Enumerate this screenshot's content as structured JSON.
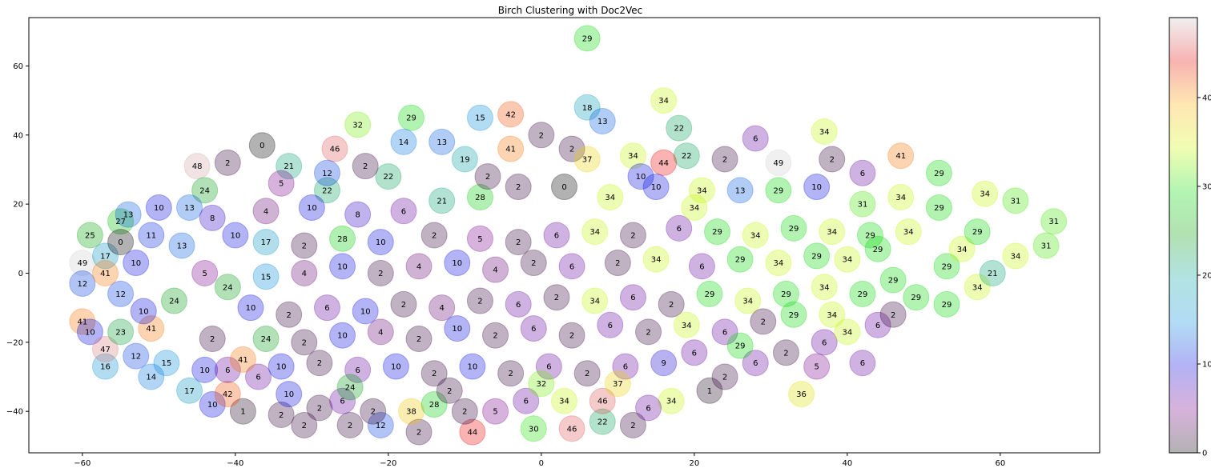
{
  "chart_data": {
    "type": "scatter",
    "title": "Birch Clustering with Doc2Vec",
    "xlabel": "",
    "ylabel": "",
    "xlim": [
      -67,
      73
    ],
    "ylim": [
      -52,
      74
    ],
    "x_ticks": [
      -60,
      -40,
      -20,
      0,
      20,
      40,
      60
    ],
    "y_ticks": [
      -40,
      -20,
      0,
      20,
      40,
      60
    ],
    "grid": false,
    "colormap": "nipy_spectral",
    "colorbar": {
      "range": [
        0,
        49
      ],
      "ticks": [
        0,
        10,
        20,
        30,
        40
      ]
    },
    "marker_alpha": 0.3,
    "points": [
      {
        "x": 6,
        "y": 68,
        "label": "29"
      },
      {
        "x": 16,
        "y": 50,
        "label": "34"
      },
      {
        "x": -36.5,
        "y": 37,
        "label": "0"
      },
      {
        "x": -60,
        "y": 3,
        "label": "49"
      },
      {
        "x": -60,
        "y": -3,
        "label": "12"
      },
      {
        "x": -60,
        "y": -14,
        "label": "41"
      },
      {
        "x": -59,
        "y": -17,
        "label": "10"
      },
      {
        "x": -59,
        "y": 11,
        "label": "25"
      },
      {
        "x": -57,
        "y": 5,
        "label": "17"
      },
      {
        "x": -57,
        "y": -27,
        "label": "16"
      },
      {
        "x": -57,
        "y": -22,
        "label": "47"
      },
      {
        "x": -55,
        "y": 15,
        "label": "27"
      },
      {
        "x": -55,
        "y": 9,
        "label": "0"
      },
      {
        "x": -54,
        "y": 17,
        "label": "13"
      },
      {
        "x": -51,
        "y": 11,
        "label": "11"
      },
      {
        "x": -51,
        "y": -16,
        "label": "41"
      },
      {
        "x": -51,
        "y": -30,
        "label": "14"
      },
      {
        "x": -43,
        "y": -38,
        "label": "10"
      },
      {
        "x": -39,
        "y": -40,
        "label": "1"
      },
      {
        "x": -41,
        "y": -35,
        "label": "42"
      },
      {
        "x": -46,
        "y": -34,
        "label": "17"
      },
      {
        "x": -34,
        "y": -41,
        "label": "2"
      },
      {
        "x": -31,
        "y": -44,
        "label": "2"
      },
      {
        "x": -25,
        "y": -44,
        "label": "2"
      },
      {
        "x": -21,
        "y": -44,
        "label": "12"
      },
      {
        "x": -16,
        "y": -46,
        "label": "2"
      },
      {
        "x": -9,
        "y": -46,
        "label": "44"
      },
      {
        "x": -1,
        "y": -45,
        "label": "30"
      },
      {
        "x": 4,
        "y": -45,
        "label": "46"
      },
      {
        "x": 8,
        "y": -43,
        "label": "22"
      },
      {
        "x": 12,
        "y": -44,
        "label": "2"
      },
      {
        "x": 17,
        "y": -37,
        "label": "34"
      },
      {
        "x": 22,
        "y": -34,
        "label": "1"
      },
      {
        "x": 34,
        "y": -35,
        "label": "36"
      },
      {
        "x": 36,
        "y": -27,
        "label": "5"
      },
      {
        "x": 42,
        "y": -26,
        "label": "6"
      },
      {
        "x": 44,
        "y": -15,
        "label": "6"
      },
      {
        "x": 53,
        "y": -9,
        "label": "29"
      },
      {
        "x": 57,
        "y": -4,
        "label": "34"
      },
      {
        "x": 59,
        "y": 0,
        "label": "21"
      },
      {
        "x": 62,
        "y": 5,
        "label": "34"
      },
      {
        "x": 66,
        "y": 8,
        "label": "31"
      },
      {
        "x": 67,
        "y": 15,
        "label": "31"
      },
      {
        "x": 62,
        "y": 21,
        "label": "31"
      },
      {
        "x": 58,
        "y": 23,
        "label": "34"
      },
      {
        "x": 52,
        "y": 29,
        "label": "29"
      },
      {
        "x": 47,
        "y": 34,
        "label": "41"
      },
      {
        "x": 37,
        "y": 41,
        "label": "34"
      },
      {
        "x": 28,
        "y": 39,
        "label": "6"
      },
      {
        "x": 18,
        "y": 42,
        "label": "22"
      },
      {
        "x": 19,
        "y": 34,
        "label": "22"
      },
      {
        "x": 6,
        "y": 48,
        "label": "18"
      },
      {
        "x": 8,
        "y": 44,
        "label": "13"
      },
      {
        "x": -4,
        "y": 46,
        "label": "42"
      },
      {
        "x": -8,
        "y": 45,
        "label": "15"
      },
      {
        "x": -17,
        "y": 45,
        "label": "29"
      },
      {
        "x": -27,
        "y": 36,
        "label": "46"
      },
      {
        "x": -24,
        "y": 43,
        "label": "32"
      },
      {
        "x": -13,
        "y": 38,
        "label": "13"
      },
      {
        "x": -10,
        "y": 33,
        "label": "19"
      },
      {
        "x": -4,
        "y": 36,
        "label": "41"
      },
      {
        "x": 0,
        "y": 40,
        "label": "2"
      },
      {
        "x": 4,
        "y": 36,
        "label": "2"
      },
      {
        "x": 6,
        "y": 33,
        "label": "37"
      },
      {
        "x": 12,
        "y": 34,
        "label": "34"
      },
      {
        "x": 16,
        "y": 32,
        "label": "44"
      },
      {
        "x": 24,
        "y": 33,
        "label": "2"
      },
      {
        "x": 31,
        "y": 32,
        "label": "49"
      },
      {
        "x": 38,
        "y": 33,
        "label": "2"
      },
      {
        "x": 42,
        "y": 29,
        "label": "6"
      },
      {
        "x": -45,
        "y": 31,
        "label": "48"
      },
      {
        "x": -44,
        "y": 24,
        "label": "24"
      },
      {
        "x": -41,
        "y": 32,
        "label": "2"
      },
      {
        "x": -33,
        "y": 31,
        "label": "21"
      },
      {
        "x": -34,
        "y": 26,
        "label": "5"
      },
      {
        "x": -28,
        "y": 24,
        "label": "22"
      },
      {
        "x": -20,
        "y": 28,
        "label": "22"
      },
      {
        "x": -18,
        "y": 38,
        "label": "14"
      },
      {
        "x": -50,
        "y": 19,
        "label": "10"
      },
      {
        "x": -46,
        "y": 19,
        "label": "13"
      },
      {
        "x": -43,
        "y": 16,
        "label": "8"
      },
      {
        "x": -47,
        "y": 8,
        "label": "13"
      },
      {
        "x": -44,
        "y": 0,
        "label": "5"
      },
      {
        "x": -48,
        "y": -8,
        "label": "24"
      },
      {
        "x": -52,
        "y": -11,
        "label": "10"
      },
      {
        "x": -55,
        "y": -17,
        "label": "23"
      },
      {
        "x": -53,
        "y": -24,
        "label": "12"
      },
      {
        "x": -49,
        "y": -26,
        "label": "15"
      },
      {
        "x": -44,
        "y": -28,
        "label": "10"
      },
      {
        "x": -41,
        "y": -28,
        "label": "6"
      },
      {
        "x": -37,
        "y": -30,
        "label": "6"
      },
      {
        "x": -33,
        "y": -35,
        "label": "10"
      },
      {
        "x": -29,
        "y": -39,
        "label": "2"
      },
      {
        "x": -26,
        "y": -37,
        "label": "6"
      },
      {
        "x": -22,
        "y": -40,
        "label": "2"
      },
      {
        "x": -17,
        "y": -40,
        "label": "38"
      },
      {
        "x": -14,
        "y": -38,
        "label": "28"
      },
      {
        "x": -10,
        "y": -40,
        "label": "2"
      },
      {
        "x": -6,
        "y": -40,
        "label": "5"
      },
      {
        "x": -2,
        "y": -37,
        "label": "6"
      },
      {
        "x": 3,
        "y": -37,
        "label": "34"
      },
      {
        "x": 8,
        "y": -37,
        "label": "46"
      },
      {
        "x": 14,
        "y": -39,
        "label": "6"
      },
      {
        "x": 24,
        "y": -30,
        "label": "2"
      },
      {
        "x": 28,
        "y": -26,
        "label": "6"
      },
      {
        "x": 32,
        "y": -23,
        "label": "2"
      },
      {
        "x": 37,
        "y": -20,
        "label": "6"
      },
      {
        "x": 40,
        "y": -17,
        "label": "34"
      },
      {
        "x": 46,
        "y": -12,
        "label": "2"
      },
      {
        "x": 49,
        "y": -7,
        "label": "29"
      },
      {
        "x": 53,
        "y": 2,
        "label": "29"
      },
      {
        "x": 55,
        "y": 7,
        "label": "34"
      },
      {
        "x": 57,
        "y": 12,
        "label": "29"
      },
      {
        "x": 52,
        "y": 19,
        "label": "29"
      },
      {
        "x": 47,
        "y": 22,
        "label": "34"
      },
      {
        "x": 42,
        "y": 20,
        "label": "31"
      },
      {
        "x": 36,
        "y": 25,
        "label": "10"
      },
      {
        "x": 31,
        "y": 24,
        "label": "29"
      },
      {
        "x": 26,
        "y": 24,
        "label": "13"
      },
      {
        "x": 21,
        "y": 24,
        "label": "34"
      },
      {
        "x": 15,
        "y": 25,
        "label": "10"
      },
      {
        "x": 9,
        "y": 22,
        "label": "34"
      },
      {
        "x": 3,
        "y": 25,
        "label": "0"
      },
      {
        "x": -3,
        "y": 25,
        "label": "2"
      },
      {
        "x": -8,
        "y": 22,
        "label": "28"
      },
      {
        "x": -13,
        "y": 21,
        "label": "21"
      },
      {
        "x": -18,
        "y": 18,
        "label": "6"
      },
      {
        "x": -24,
        "y": 17,
        "label": "8"
      },
      {
        "x": -30,
        "y": 19,
        "label": "10"
      },
      {
        "x": -36,
        "y": 18,
        "label": "4"
      },
      {
        "x": -40,
        "y": 11,
        "label": "10"
      },
      {
        "x": -36,
        "y": 9,
        "label": "17"
      },
      {
        "x": -31,
        "y": 8,
        "label": "2"
      },
      {
        "x": -26,
        "y": 10,
        "label": "28"
      },
      {
        "x": -21,
        "y": 9,
        "label": "10"
      },
      {
        "x": -14,
        "y": 11,
        "label": "2"
      },
      {
        "x": -8,
        "y": 10,
        "label": "5"
      },
      {
        "x": -3,
        "y": 9,
        "label": "2"
      },
      {
        "x": 2,
        "y": 11,
        "label": "6"
      },
      {
        "x": 7,
        "y": 12,
        "label": "34"
      },
      {
        "x": 12,
        "y": 11,
        "label": "2"
      },
      {
        "x": 18,
        "y": 13,
        "label": "6"
      },
      {
        "x": 23,
        "y": 12,
        "label": "29"
      },
      {
        "x": 28,
        "y": 11,
        "label": "34"
      },
      {
        "x": 33,
        "y": 13,
        "label": "29"
      },
      {
        "x": 38,
        "y": 12,
        "label": "34"
      },
      {
        "x": 43,
        "y": 11,
        "label": "29"
      },
      {
        "x": 48,
        "y": 12,
        "label": "34"
      },
      {
        "x": 36,
        "y": 5,
        "label": "29"
      },
      {
        "x": 31,
        "y": 3,
        "label": "34"
      },
      {
        "x": 26,
        "y": 4,
        "label": "29"
      },
      {
        "x": 21,
        "y": 2,
        "label": "6"
      },
      {
        "x": 15,
        "y": 4,
        "label": "34"
      },
      {
        "x": 10,
        "y": 3,
        "label": "2"
      },
      {
        "x": 4,
        "y": 2,
        "label": "6"
      },
      {
        "x": -1,
        "y": 3,
        "label": "2"
      },
      {
        "x": -6,
        "y": 1,
        "label": "4"
      },
      {
        "x": -11,
        "y": 3,
        "label": "10"
      },
      {
        "x": -16,
        "y": 2,
        "label": "4"
      },
      {
        "x": -21,
        "y": 0,
        "label": "2"
      },
      {
        "x": -26,
        "y": 2,
        "label": "10"
      },
      {
        "x": -31,
        "y": 0,
        "label": "4"
      },
      {
        "x": -36,
        "y": -1,
        "label": "15"
      },
      {
        "x": -41,
        "y": -4,
        "label": "24"
      },
      {
        "x": -38,
        "y": -10,
        "label": "10"
      },
      {
        "x": -33,
        "y": -12,
        "label": "2"
      },
      {
        "x": -28,
        "y": -10,
        "label": "6"
      },
      {
        "x": -23,
        "y": -11,
        "label": "10"
      },
      {
        "x": -18,
        "y": -9,
        "label": "2"
      },
      {
        "x": -13,
        "y": -10,
        "label": "4"
      },
      {
        "x": -8,
        "y": -8,
        "label": "2"
      },
      {
        "x": -3,
        "y": -9,
        "label": "6"
      },
      {
        "x": 2,
        "y": -7,
        "label": "2"
      },
      {
        "x": 7,
        "y": -8,
        "label": "34"
      },
      {
        "x": 12,
        "y": -7,
        "label": "6"
      },
      {
        "x": 17,
        "y": -9,
        "label": "2"
      },
      {
        "x": 22,
        "y": -6,
        "label": "29"
      },
      {
        "x": 27,
        "y": -8,
        "label": "34"
      },
      {
        "x": 32,
        "y": -6,
        "label": "29"
      },
      {
        "x": 37,
        "y": -4,
        "label": "34"
      },
      {
        "x": 42,
        "y": -6,
        "label": "29"
      },
      {
        "x": 46,
        "y": -2,
        "label": "29"
      },
      {
        "x": 40,
        "y": 4,
        "label": "34"
      },
      {
        "x": 44,
        "y": 7,
        "label": "29"
      },
      {
        "x": 29,
        "y": -14,
        "label": "2"
      },
      {
        "x": 24,
        "y": -17,
        "label": "6"
      },
      {
        "x": 19,
        "y": -15,
        "label": "34"
      },
      {
        "x": 14,
        "y": -17,
        "label": "2"
      },
      {
        "x": 9,
        "y": -15,
        "label": "6"
      },
      {
        "x": 4,
        "y": -18,
        "label": "2"
      },
      {
        "x": -1,
        "y": -16,
        "label": "6"
      },
      {
        "x": -6,
        "y": -18,
        "label": "2"
      },
      {
        "x": -11,
        "y": -16,
        "label": "10"
      },
      {
        "x": -16,
        "y": -19,
        "label": "2"
      },
      {
        "x": -21,
        "y": -17,
        "label": "4"
      },
      {
        "x": -26,
        "y": -18,
        "label": "10"
      },
      {
        "x": -31,
        "y": -20,
        "label": "2"
      },
      {
        "x": -36,
        "y": -19,
        "label": "24"
      },
      {
        "x": -43,
        "y": -19,
        "label": "2"
      },
      {
        "x": -39,
        "y": -25,
        "label": "41"
      },
      {
        "x": -34,
        "y": -27,
        "label": "10"
      },
      {
        "x": -29,
        "y": -26,
        "label": "2"
      },
      {
        "x": -24,
        "y": -28,
        "label": "6"
      },
      {
        "x": -19,
        "y": -27,
        "label": "10"
      },
      {
        "x": -14,
        "y": -29,
        "label": "2"
      },
      {
        "x": -9,
        "y": -27,
        "label": "10"
      },
      {
        "x": -4,
        "y": -29,
        "label": "2"
      },
      {
        "x": 1,
        "y": -27,
        "label": "6"
      },
      {
        "x": 6,
        "y": -29,
        "label": "2"
      },
      {
        "x": 11,
        "y": -27,
        "label": "6"
      },
      {
        "x": 16,
        "y": -26,
        "label": "9"
      },
      {
        "x": 20,
        "y": -23,
        "label": "6"
      },
      {
        "x": 33,
        "y": -12,
        "label": "29"
      },
      {
        "x": 38,
        "y": -12,
        "label": "34"
      },
      {
        "x": -28,
        "y": 29,
        "label": "12"
      },
      {
        "x": -23,
        "y": 31,
        "label": "2"
      },
      {
        "x": -7,
        "y": 28,
        "label": "2"
      },
      {
        "x": 13,
        "y": 28,
        "label": "10"
      },
      {
        "x": 20,
        "y": 19,
        "label": "34"
      },
      {
        "x": -57,
        "y": 0,
        "label": "41"
      },
      {
        "x": -55,
        "y": -6,
        "label": "12"
      },
      {
        "x": -53,
        "y": 3,
        "label": "10"
      },
      {
        "x": -25,
        "y": -33,
        "label": "24"
      },
      {
        "x": -12,
        "y": -34,
        "label": "2"
      },
      {
        "x": 0,
        "y": -32,
        "label": "32"
      },
      {
        "x": 10,
        "y": -32,
        "label": "37"
      },
      {
        "x": 26,
        "y": -21,
        "label": "29"
      }
    ]
  }
}
